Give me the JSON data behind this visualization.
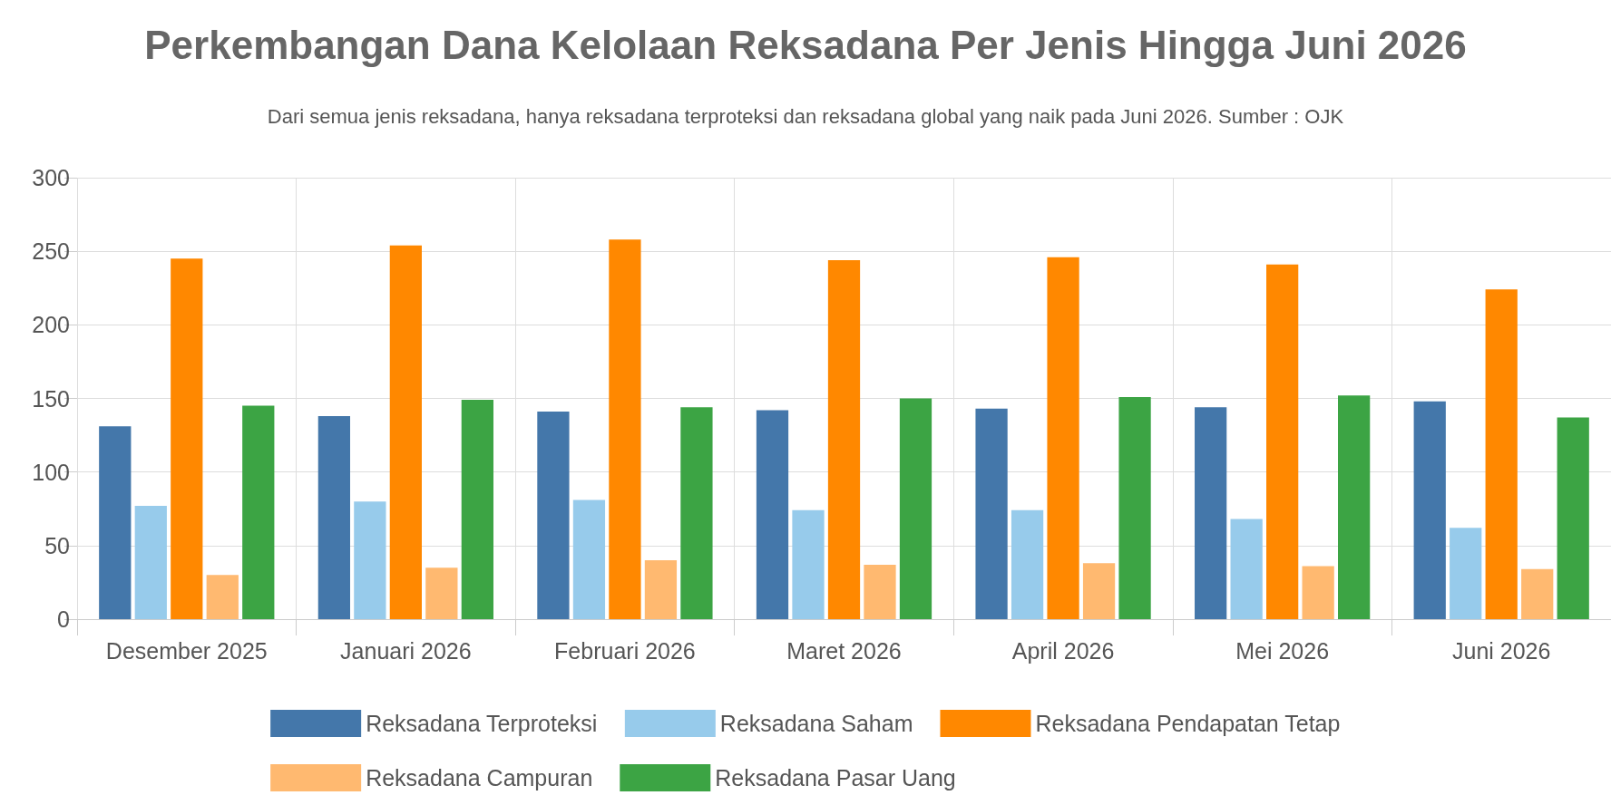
{
  "chart_data": {
    "type": "bar",
    "title": "Perkembangan Dana Kelolaan Reksadana Per Jenis Hingga Juni 2026",
    "subtitle": "Dari semua jenis reksadana, hanya reksadana terproteksi dan reksadana global yang naik pada Juni 2026. Sumber : OJK",
    "categories": [
      "Desember 2025",
      "Januari 2026",
      "Februari 2026",
      "Maret 2026",
      "April 2026",
      "Mei 2026",
      "Juni 2026"
    ],
    "series": [
      {
        "name": "Reksadana Terproteksi",
        "color": "#4477aa",
        "values": [
          131,
          138,
          141,
          142,
          143,
          144,
          148
        ]
      },
      {
        "name": "Reksadana Saham",
        "color": "#97cbeb",
        "values": [
          77,
          80,
          81,
          74,
          74,
          68,
          62
        ]
      },
      {
        "name": "Reksadana Pendapatan Tetap",
        "color": "#ff8800",
        "values": [
          245,
          254,
          258,
          244,
          246,
          241,
          224
        ]
      },
      {
        "name": "Reksadana Campuran",
        "color": "#ffb970",
        "values": [
          30,
          35,
          40,
          37,
          38,
          36,
          34
        ]
      },
      {
        "name": "Reksadana Pasar Uang",
        "color": "#3ca444",
        "values": [
          145,
          149,
          144,
          150,
          151,
          152,
          137
        ]
      }
    ],
    "ylim": [
      0,
      300
    ],
    "yticks": [
      0,
      50,
      100,
      150,
      200,
      250,
      300
    ],
    "grid": true,
    "legend": "bottom"
  }
}
